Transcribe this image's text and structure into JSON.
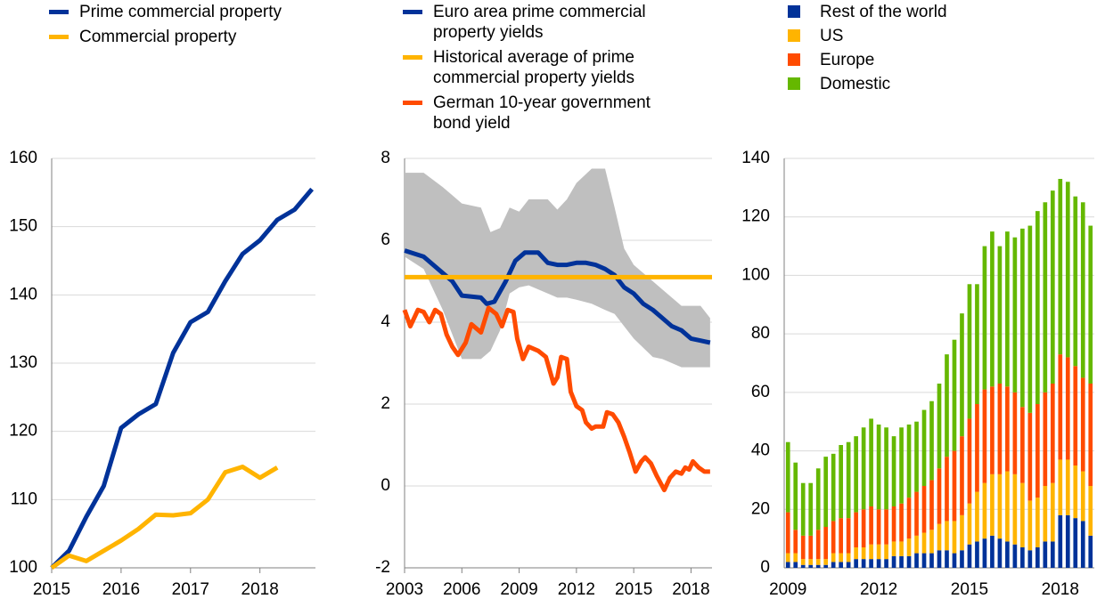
{
  "chart_data": [
    {
      "type": "line",
      "xlim": [
        2015,
        2018.8
      ],
      "xticks": [
        2015,
        2016,
        2017,
        2018
      ],
      "ylim": [
        100,
        160
      ],
      "yticks": [
        100,
        110,
        120,
        130,
        140,
        150,
        160
      ],
      "grid": true,
      "legend": "top",
      "series": [
        {
          "name": "Prime commercial property",
          "color": "#003299",
          "x": [
            2015,
            2015.25,
            2015.5,
            2015.75,
            2016,
            2016.25,
            2016.5,
            2016.75,
            2017,
            2017.25,
            2017.5,
            2017.75,
            2018,
            2018.25,
            2018.5,
            2018.75
          ],
          "values": [
            100,
            102.5,
            107.5,
            112,
            120.5,
            122.5,
            124,
            131.5,
            136,
            137.5,
            142,
            146,
            148,
            151,
            152.5,
            155.5
          ]
        },
        {
          "name": "Commercial property",
          "color": "#ffb400",
          "x": [
            2015,
            2015.25,
            2015.5,
            2015.75,
            2016,
            2016.25,
            2016.5,
            2016.75,
            2017,
            2017.25,
            2017.5,
            2017.75,
            2018,
            2018.25
          ],
          "values": [
            100,
            101.8,
            101,
            102.5,
            104,
            105.7,
            107.8,
            107.7,
            108,
            110,
            114,
            114.8,
            113.2,
            114.7
          ]
        }
      ]
    },
    {
      "type": "line",
      "xlim": [
        2003,
        2019.1
      ],
      "xticks": [
        2003,
        2006,
        2009,
        2012,
        2015,
        2018
      ],
      "ylim": [
        -2,
        8
      ],
      "yticks": [
        -2,
        0,
        2,
        4,
        6,
        8
      ],
      "grid": true,
      "legend": "top",
      "band": {
        "color": "#bfbfbf",
        "x": [
          2003,
          2004,
          2005,
          2005.5,
          2006,
          2007,
          2007.5,
          2008,
          2008.5,
          2009,
          2009.5,
          2010.5,
          2011,
          2011.5,
          2012,
          2012.8,
          2013.5,
          2014,
          2014.5,
          2015,
          2016,
          2016.5,
          2017.5,
          2018.5,
          2019
        ],
        "upper": [
          7.65,
          7.65,
          7.3,
          7.1,
          6.9,
          6.8,
          6.2,
          6.3,
          6.8,
          6.7,
          7.0,
          7.0,
          6.75,
          7.0,
          7.4,
          7.75,
          7.75,
          6.8,
          5.8,
          5.4,
          5.0,
          4.8,
          4.4,
          4.4,
          4.1
        ],
        "lower": [
          5.6,
          5.3,
          4.3,
          3.7,
          3.1,
          3.1,
          3.3,
          3.8,
          4.7,
          4.85,
          4.9,
          4.7,
          4.6,
          4.6,
          4.55,
          4.45,
          4.3,
          4.2,
          3.9,
          3.6,
          3.15,
          3.1,
          2.9,
          2.9,
          2.9
        ]
      },
      "series": [
        {
          "name": "Euro area prime commercial property yields",
          "color": "#003299",
          "x": [
            2003,
            2004,
            2005,
            2005.5,
            2006,
            2007,
            2007.3,
            2007.7,
            2008.3,
            2008.8,
            2009.3,
            2010,
            2010.5,
            2011,
            2011.5,
            2012,
            2012.5,
            2013,
            2013.5,
            2014,
            2014.5,
            2015,
            2015.5,
            2016,
            2016.5,
            2017,
            2017.5,
            2018,
            2018.5,
            2019
          ],
          "values": [
            5.75,
            5.6,
            5.2,
            5.0,
            4.65,
            4.6,
            4.45,
            4.5,
            5.0,
            5.5,
            5.7,
            5.7,
            5.45,
            5.4,
            5.4,
            5.45,
            5.45,
            5.4,
            5.3,
            5.15,
            4.85,
            4.7,
            4.45,
            4.3,
            4.1,
            3.9,
            3.8,
            3.6,
            3.55,
            3.5
          ]
        },
        {
          "name": "Historical average of prime commercial property yields",
          "color": "#ffb400",
          "x": [
            2003,
            2019.1
          ],
          "values": [
            5.1,
            5.1
          ]
        },
        {
          "name": "German 10-year government bond yield",
          "color": "#ff4b00",
          "x": [
            2003,
            2003.3,
            2003.7,
            2004,
            2004.3,
            2004.6,
            2004.9,
            2005.2,
            2005.5,
            2005.8,
            2006.2,
            2006.5,
            2007,
            2007.4,
            2007.8,
            2008.1,
            2008.4,
            2008.7,
            2008.9,
            2009.2,
            2009.5,
            2010,
            2010.4,
            2010.8,
            2011,
            2011.2,
            2011.5,
            2011.7,
            2012,
            2012.3,
            2012.5,
            2012.8,
            2013,
            2013.4,
            2013.6,
            2013.9,
            2014.2,
            2014.5,
            2014.8,
            2015.1,
            2015.4,
            2015.6,
            2015.9,
            2016.2,
            2016.6,
            2016.9,
            2017.2,
            2017.5,
            2017.7,
            2017.9,
            2018.1,
            2018.4,
            2018.7,
            2019
          ],
          "values": [
            4.3,
            3.9,
            4.3,
            4.25,
            4.0,
            4.3,
            4.2,
            3.7,
            3.4,
            3.2,
            3.5,
            3.95,
            3.75,
            4.35,
            4.2,
            3.9,
            4.3,
            4.25,
            3.6,
            3.1,
            3.4,
            3.3,
            3.15,
            2.5,
            2.65,
            3.15,
            3.1,
            2.3,
            1.95,
            1.85,
            1.55,
            1.4,
            1.45,
            1.45,
            1.8,
            1.75,
            1.55,
            1.2,
            0.8,
            0.35,
            0.6,
            0.7,
            0.55,
            0.25,
            -0.1,
            0.2,
            0.35,
            0.3,
            0.45,
            0.4,
            0.6,
            0.45,
            0.35,
            0.35
          ]
        }
      ]
    },
    {
      "type": "bar",
      "stacked": true,
      "categories": [
        "2009",
        null,
        null,
        null,
        null,
        null,
        null,
        null,
        null,
        null,
        null,
        null,
        "2012",
        null,
        null,
        null,
        null,
        null,
        null,
        null,
        null,
        null,
        null,
        null,
        "2015",
        null,
        null,
        null,
        null,
        null,
        null,
        null,
        null,
        null,
        null,
        null,
        "2018",
        null,
        null,
        null,
        null
      ],
      "ylim": [
        0,
        140
      ],
      "yticks": [
        0,
        20,
        40,
        60,
        80,
        100,
        120,
        140
      ],
      "grid": true,
      "legend": "top",
      "series": [
        {
          "name": "Rest of the world",
          "color": "#003299",
          "values": [
            2,
            2,
            1,
            1,
            1,
            1,
            2,
            2,
            2,
            3,
            3,
            3,
            3,
            3,
            4,
            4,
            4,
            5,
            5,
            5,
            6,
            6,
            5,
            6,
            8,
            9,
            10,
            11,
            10,
            9,
            8,
            7,
            6,
            7,
            9,
            9,
            18,
            18,
            17,
            16,
            11
          ]
        },
        {
          "name": "US",
          "color": "#ffb400",
          "values": [
            3,
            3,
            2,
            2,
            2,
            2,
            3,
            3,
            3,
            4,
            4,
            5,
            5,
            5,
            5,
            5,
            6,
            6,
            7,
            8,
            9,
            10,
            11,
            12,
            14,
            17,
            19,
            21,
            22,
            24,
            24,
            22,
            17,
            17,
            19,
            20,
            19,
            19,
            18,
            17,
            17
          ]
        },
        {
          "name": "Europe",
          "color": "#ff4b00",
          "values": [
            14,
            8,
            8,
            8,
            10,
            11,
            11,
            12,
            12,
            12,
            13,
            13,
            12,
            12,
            12,
            13,
            14,
            15,
            16,
            17,
            19,
            22,
            24,
            27,
            29,
            30,
            32,
            30,
            31,
            29,
            28,
            26,
            30,
            32,
            32,
            34,
            36,
            35,
            34,
            32,
            35
          ]
        },
        {
          "name": "Domestic",
          "color": "#65b800",
          "values": [
            24,
            23,
            18,
            18,
            21,
            24,
            23,
            25,
            26,
            26,
            28,
            30,
            29,
            28,
            24,
            26,
            25,
            24,
            26,
            27,
            29,
            35,
            38,
            42,
            46,
            41,
            49,
            53,
            47,
            53,
            53,
            61,
            64,
            66,
            65,
            66,
            60,
            60,
            58,
            60,
            54
          ]
        }
      ]
    }
  ]
}
